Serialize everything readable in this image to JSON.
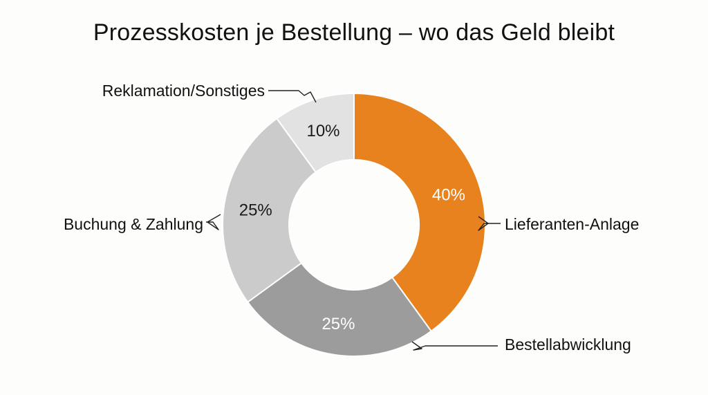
{
  "chart_data": {
    "type": "pie",
    "title": "Prozesskosten je Bestellung – wo das Geld bleibt",
    "slices": [
      {
        "label": "Lieferanten-Anlage",
        "value": 40,
        "value_label": "40%",
        "color": "#e8821e",
        "text_color": "#ffffff"
      },
      {
        "label": "Bestellabwicklung",
        "value": 25,
        "value_label": "25%",
        "color": "#9c9c9c",
        "text_color": "#ffffff"
      },
      {
        "label": "Buchung & Zahlung",
        "value": 25,
        "value_label": "25%",
        "color": "#cbcbcb",
        "text_color": "#1a1a1a"
      },
      {
        "label": "Reklamation/Sonstiges",
        "value": 10,
        "value_label": "10%",
        "color": "#e2e2e2",
        "text_color": "#1a1a1a"
      }
    ]
  }
}
